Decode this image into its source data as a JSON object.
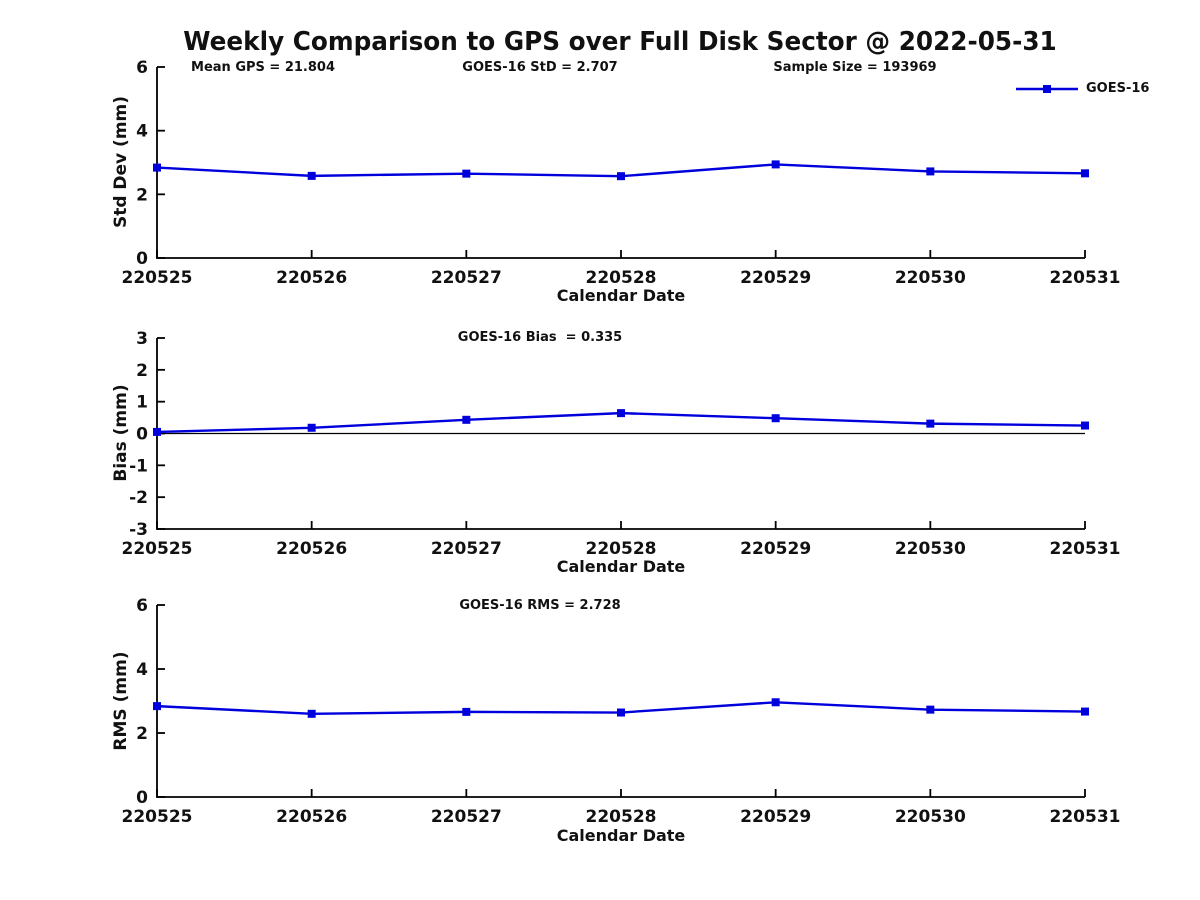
{
  "title": "Weekly Comparison to GPS over Full Disk Sector @ 2022-05-31",
  "legend": {
    "label": "GOES-16",
    "color": "#0000dd"
  },
  "colors": {
    "line": "#0000dd",
    "axis": "#000000",
    "text": "#111111"
  },
  "chart_data": [
    {
      "type": "line",
      "id": "stddev",
      "annotations": [
        "Mean GPS = 21.804",
        "GOES-16 StD = 2.707",
        "Sample Size = 193969"
      ],
      "ylabel": "Std Dev (mm)",
      "xlabel": "Calendar Date",
      "categories": [
        "220525",
        "220526",
        "220527",
        "220528",
        "220529",
        "220530",
        "220531"
      ],
      "yticks": [
        0,
        2,
        4,
        6
      ],
      "ylim": [
        0,
        6
      ],
      "zero_line": false,
      "grid": false,
      "legend_position": "top-right",
      "series": [
        {
          "name": "GOES-16",
          "color": "#0000dd",
          "marker": "square",
          "values": [
            2.84,
            2.58,
            2.65,
            2.57,
            2.94,
            2.72,
            2.66
          ]
        }
      ]
    },
    {
      "type": "line",
      "id": "bias",
      "annotations": [
        "GOES-16 Bias  = 0.335"
      ],
      "ylabel": "Bias (mm)",
      "xlabel": "Calendar Date",
      "categories": [
        "220525",
        "220526",
        "220527",
        "220528",
        "220529",
        "220530",
        "220531"
      ],
      "yticks": [
        -3,
        -2,
        -1,
        0,
        1,
        2,
        3
      ],
      "ylim": [
        -3,
        3
      ],
      "zero_line": true,
      "grid": false,
      "series": [
        {
          "name": "GOES-16",
          "color": "#0000dd",
          "marker": "square",
          "values": [
            0.05,
            0.18,
            0.43,
            0.64,
            0.48,
            0.31,
            0.25
          ]
        }
      ]
    },
    {
      "type": "line",
      "id": "rms",
      "annotations": [
        "GOES-16 RMS = 2.728"
      ],
      "ylabel": "RMS (mm)",
      "xlabel": "Calendar Date",
      "categories": [
        "220525",
        "220526",
        "220527",
        "220528",
        "220529",
        "220530",
        "220531"
      ],
      "yticks": [
        0,
        2,
        4,
        6
      ],
      "ylim": [
        0,
        6
      ],
      "zero_line": false,
      "grid": false,
      "series": [
        {
          "name": "GOES-16",
          "color": "#0000dd",
          "marker": "square",
          "values": [
            2.84,
            2.6,
            2.66,
            2.64,
            2.96,
            2.73,
            2.67
          ]
        }
      ]
    }
  ]
}
